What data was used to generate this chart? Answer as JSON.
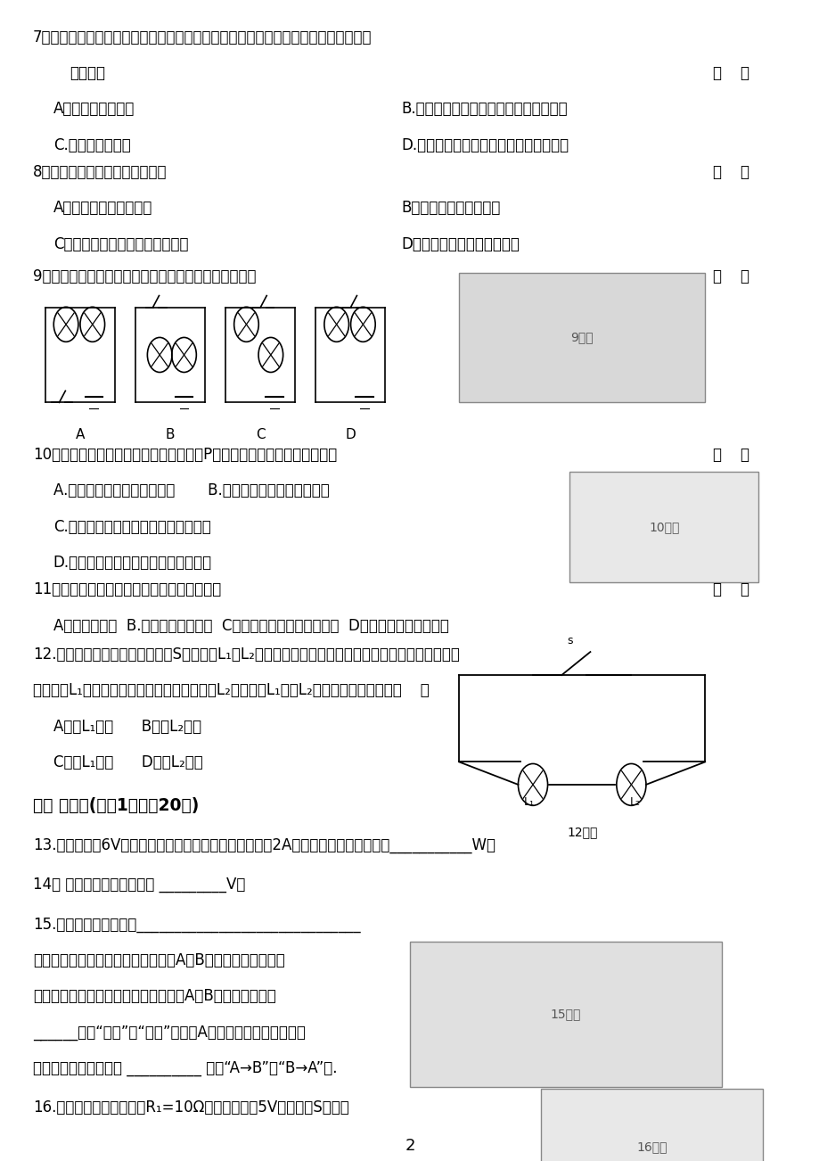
{
  "page_number": "2",
  "background_color": "#ffffff",
  "text_color": "#000000",
  "q7_line1": "7．三只轻质小球分别用丝线悬挂着，其中任意两只球靠近时都互相吸引，则下列结论",
  "q7_line2": "正确的是",
  "q7_A": "A．三只小球都带电",
  "q7_B": "B.有两只球带同种电荷，第三只球不带电",
  "q7_C": "C.只有一只球带电",
  "q7_D": "D.有两只球带异种电荷，第三只球不带电",
  "q8_line1": "8．下列关于物质分类合理的是：",
  "q8_A": "A．铅笔芯、橡胶是导体",
  "q8_B": "B．铁、冰、玻璃是晶体",
  "q8_C": "C．塑料、干木棒、陶瓷是绝缘体",
  "q8_D": "D．蜡、食盐、水银是非晶体",
  "q9_line1": "9．如下图中的四个电路中，与右边实物电路图对应的是",
  "q10_line1": "10．如图所示电路，当滑动变阵器的滑片P向右移动时，下列说法正确的是",
  "q10_A": "A.电流表、电压表示数都增大",
  "q10_B": "B.电流表、电压表示数都减小",
  "q10_C": "C.电流表的示数减小，电压表示数增大",
  "q10_D": "D.电流表的示数增大，电压表示数减小",
  "q11_line1": "11．下列实例中，属于内能转化为机械能的是",
  "q11_A": "A．煮炭的燃烧  B.锅铁管时锅条发热  C．放烟火时，礼花腾空而起  D．植物进行的光合作用",
  "q12_line1": "12.如右图所示的电路中，若开关S闭合，灯L₁、L₂均不亮，某同学用一根导线去查找电路故障，当他用",
  "q12_line2": "导线连接L₁两端时，两灯仍不亮；当导线连接L₂两端时，L₁亮、L₂不亮．由此可以判断（    ）",
  "q12_A": "A．灯L₁断路",
  "q12_B": "B．灯L₂断路",
  "q12_C": "C．灯L₁短路",
  "q12_D": "D．灯L₂短路",
  "sec2": "二． 填空题(每空1分，共20分)",
  "q13": "13.额定电压为6V的灯泡，正常发光时通过灯丝的电流是2A，则该灯泡的额定功率是___________W。",
  "q14": "14． 我国家庭电路的电压是 _________V。",
  "q15_line1": "15.验电器的制作原理是______________________________",
  "q15_line2": "如图所示，用带有绵缘柄的金属棒将A、B金属球接触的瞬间，",
  "q15_line3": "两金属指针偏转的角度都减小，这说明A、B所带的电荷种类",
  "q15_line4": "______（填“相同”或“不同”）；若A带负电，则连接的瞬间，",
  "q15_line5": "金属棒中的电流方向为 __________ （填“A→B”或“B→A”）.",
  "q16_line1": "16.如图所示的电路，电阵R₁=10Ω，电源电压为5V，当开关S断开时"
}
